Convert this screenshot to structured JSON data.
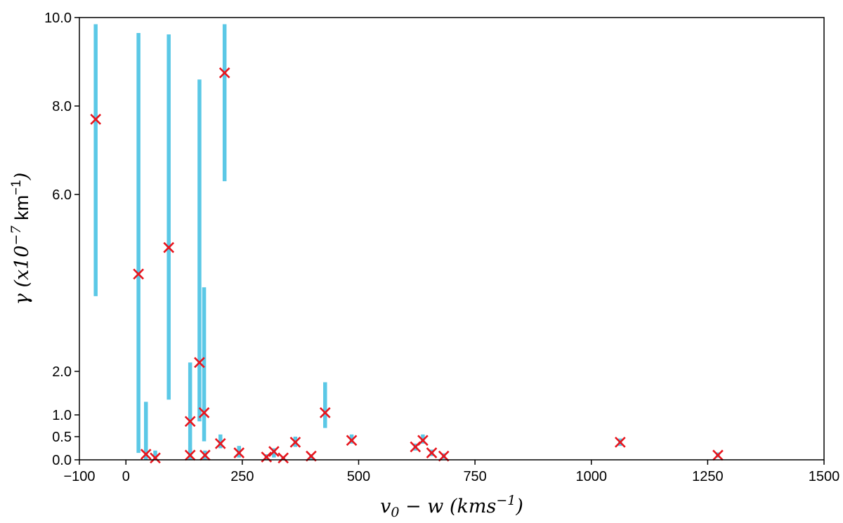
{
  "chart_data": {
    "type": "scatter",
    "title": "",
    "xlabel": "v_0 - w (kms^{-1})",
    "ylabel": "γ (x10^{-7} km^{-1})",
    "xlim": [
      -100,
      1500
    ],
    "ylim": [
      0,
      10
    ],
    "xticks": [
      -100,
      0,
      250,
      500,
      750,
      1000,
      1250,
      1500
    ],
    "xtick_labels": [
      "−100",
      "0",
      "250",
      "500",
      "750",
      "1000",
      "1250",
      "1500"
    ],
    "yticks": [
      0.0,
      0.5,
      1.0,
      2.0,
      6.0,
      8.0,
      10.0
    ],
    "ytick_labels": [
      "0.0",
      "0.5",
      "1.0",
      "2.0",
      "6.0",
      "8.0",
      "10.0"
    ],
    "y_scale": "piecewise: 0-2 stretched, 2-10 compressed",
    "grid": false,
    "legend": "none",
    "colors": {
      "marker": "#e8141c",
      "errorbar": "#5bc8e6"
    },
    "points": [
      {
        "x": -65,
        "y": 7.7,
        "ylo": 3.7,
        "yhi": 9.85
      },
      {
        "x": 27,
        "y": 4.2,
        "ylo": 0.15,
        "yhi": 9.65
      },
      {
        "x": 43,
        "y": 0.12,
        "ylo": 0.0,
        "yhi": 1.3
      },
      {
        "x": 63,
        "y": 0.04,
        "ylo": 0.0,
        "yhi": 0.2
      },
      {
        "x": 92,
        "y": 4.8,
        "ylo": 1.35,
        "yhi": 9.62
      },
      {
        "x": 138,
        "y": 0.85,
        "ylo": 0.0,
        "yhi": 2.2
      },
      {
        "x": 138,
        "y": 0.1,
        "ylo": 0.0,
        "yhi": 0.25
      },
      {
        "x": 158,
        "y": 2.2,
        "ylo": 0.85,
        "yhi": 8.6
      },
      {
        "x": 168,
        "y": 1.05,
        "ylo": 0.4,
        "yhi": 3.9
      },
      {
        "x": 170,
        "y": 0.1,
        "ylo": 0.0,
        "yhi": 0.2
      },
      {
        "x": 203,
        "y": 0.35,
        "ylo": 0.25,
        "yhi": 0.55
      },
      {
        "x": 212,
        "y": 8.75,
        "ylo": 6.3,
        "yhi": 9.85
      },
      {
        "x": 243,
        "y": 0.15,
        "ylo": 0.05,
        "yhi": 0.3
      },
      {
        "x": 302,
        "y": 0.06,
        "ylo": 0.0,
        "yhi": 0.12
      },
      {
        "x": 318,
        "y": 0.18,
        "ylo": 0.05,
        "yhi": 0.25
      },
      {
        "x": 338,
        "y": 0.04,
        "ylo": 0.0,
        "yhi": 0.08
      },
      {
        "x": 364,
        "y": 0.38,
        "ylo": 0.28,
        "yhi": 0.5
      },
      {
        "x": 398,
        "y": 0.08,
        "ylo": 0.0,
        "yhi": 0.12
      },
      {
        "x": 428,
        "y": 1.05,
        "ylo": 0.7,
        "yhi": 1.75
      },
      {
        "x": 485,
        "y": 0.42,
        "ylo": 0.35,
        "yhi": 0.55
      },
      {
        "x": 622,
        "y": 0.28,
        "ylo": 0.2,
        "yhi": 0.35
      },
      {
        "x": 638,
        "y": 0.42,
        "ylo": 0.35,
        "yhi": 0.55
      },
      {
        "x": 657,
        "y": 0.15,
        "ylo": 0.08,
        "yhi": 0.22
      },
      {
        "x": 683,
        "y": 0.08,
        "ylo": 0.02,
        "yhi": 0.14
      },
      {
        "x": 1062,
        "y": 0.38,
        "ylo": 0.3,
        "yhi": 0.46
      },
      {
        "x": 1272,
        "y": 0.1,
        "ylo": 0.05,
        "yhi": 0.16
      }
    ]
  }
}
